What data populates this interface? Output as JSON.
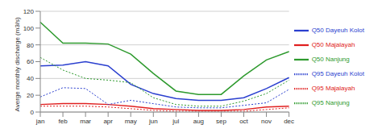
{
  "chart_data": {
    "type": "line",
    "y_label": "Averge monthly discharge (m3/s)",
    "categories": [
      "jan",
      "feb",
      "mar",
      "apr",
      "may",
      "jun",
      "jul",
      "aug",
      "sep",
      "oct",
      "nov",
      "dec"
    ],
    "series": [
      {
        "name": "Q50 Majalayah",
        "color": "#e02020",
        "line_style": "solid",
        "values": [
          9,
          10,
          10,
          9,
          7,
          4,
          3,
          2,
          2,
          3,
          6,
          7
        ]
      },
      {
        "name": "Q95 Majalayah",
        "color": "#e02020",
        "line_style": "dotted",
        "values": [
          7,
          7,
          7,
          6,
          4,
          2,
          1,
          1,
          1,
          1,
          3,
          5
        ]
      },
      {
        "name": "Q95 Dayeuh Kolot",
        "color": "#2a3fcf",
        "line_style": "dotted",
        "values": [
          18,
          29,
          28,
          9,
          14,
          10,
          6,
          5,
          5,
          8,
          11,
          27
        ]
      },
      {
        "name": "Q50 Dayeuh Kolot",
        "color": "#2a3fcf",
        "line_style": "solid",
        "values": [
          55,
          56,
          60,
          55,
          33,
          22,
          16,
          14,
          14,
          17,
          28,
          41
        ]
      },
      {
        "name": "Q95 Nanjung",
        "color": "#2e9a2e",
        "line_style": "dotted",
        "values": [
          65,
          50,
          40,
          38,
          35,
          17,
          9,
          7,
          7,
          13,
          22,
          38
        ]
      },
      {
        "name": "Q50 Nanjung",
        "color": "#2e9a2e",
        "line_style": "solid",
        "values": [
          107,
          82,
          82,
          81,
          69,
          46,
          25,
          21,
          21,
          43,
          62,
          72
        ]
      }
    ],
    "ylim": [
      0,
      120
    ],
    "yticks": [
      0,
      20,
      40,
      60,
      80,
      100,
      120
    ],
    "grid": true,
    "legend": "right",
    "marker": "none"
  }
}
